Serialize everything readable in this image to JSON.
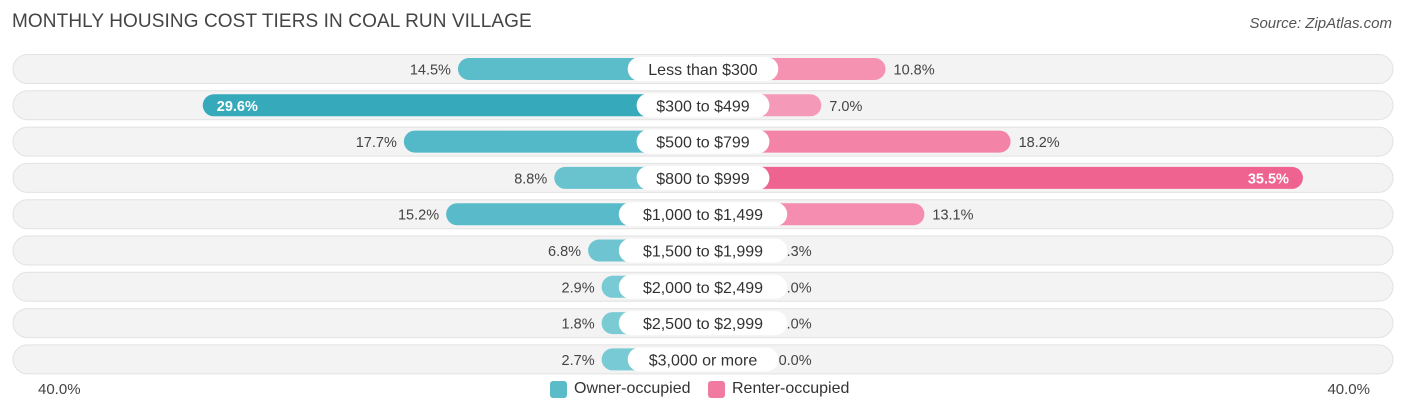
{
  "title": "MONTHLY HOUSING COST TIERS IN COAL RUN VILLAGE",
  "source": "Source: ZipAtlas.com",
  "axis": {
    "left_label": "40.0%",
    "right_label": "40.0%"
  },
  "legend": {
    "owner": {
      "label": "Owner-occupied",
      "color": "#5bbcc8"
    },
    "renter": {
      "label": "Renter-occupied",
      "color": "#f07aa0"
    }
  },
  "chart_data": {
    "type": "bar",
    "orientation": "diverging-horizontal",
    "categories": [
      "Less than $300",
      "$300 to $499",
      "$500 to $799",
      "$800 to $999",
      "$1,000 to $1,499",
      "$1,500 to $1,999",
      "$2,000 to $2,499",
      "$2,500 to $2,999",
      "$3,000 or more"
    ],
    "series": [
      {
        "name": "Owner-occupied",
        "values": [
          14.5,
          29.6,
          17.7,
          8.8,
          15.2,
          6.8,
          2.9,
          1.8,
          2.7
        ],
        "labels": [
          "14.5%",
          "29.6%",
          "17.7%",
          "8.8%",
          "15.2%",
          "6.8%",
          "2.9%",
          "1.8%",
          "2.7%"
        ]
      },
      {
        "name": "Renter-occupied",
        "values": [
          10.8,
          7.0,
          18.2,
          35.5,
          13.1,
          3.3,
          0.0,
          0.0,
          0.0
        ],
        "labels": [
          "10.8%",
          "7.0%",
          "18.2%",
          "35.5%",
          "13.1%",
          "3.3%",
          "0.0%",
          "0.0%",
          "0.0%"
        ]
      }
    ],
    "xlim": [
      -40,
      40
    ],
    "title": "MONTHLY HOUSING COST TIERS IN COAL RUN VILLAGE",
    "legend_position": "bottom-center"
  }
}
